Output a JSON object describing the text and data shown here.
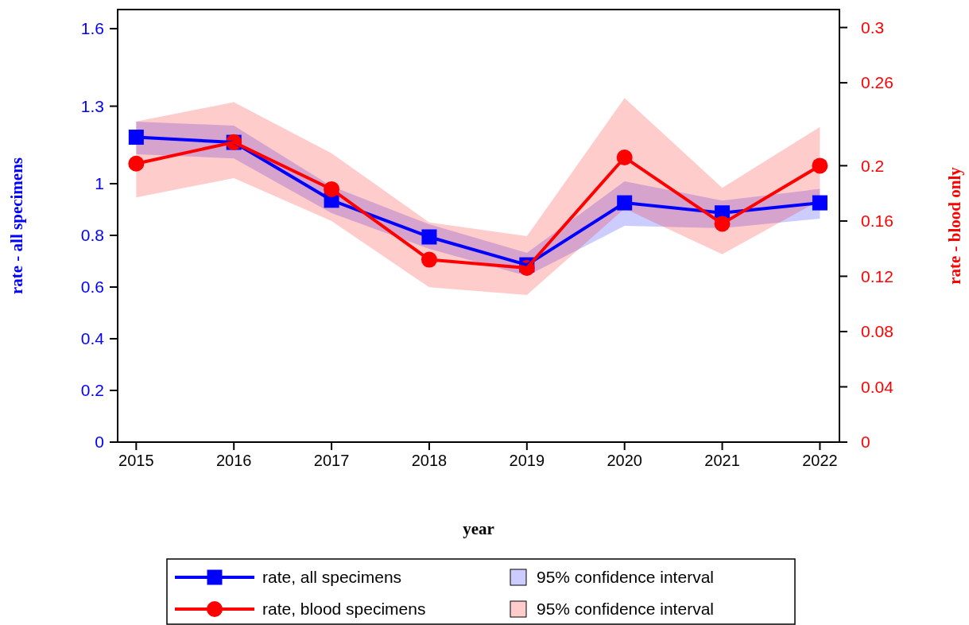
{
  "chart_data": {
    "type": "line",
    "xlabel": "year",
    "ylabel": "rate - all specimens",
    "y2label": "rate - blood only",
    "x": [
      2015,
      2016,
      2017,
      2018,
      2019,
      2020,
      2021,
      2022
    ],
    "xlim": [
      2014.81,
      2022.2
    ],
    "xticks": [
      2015,
      2016,
      2017,
      2018,
      2019,
      2020,
      2021,
      2022
    ],
    "ylim": [
      0,
      1.674
    ],
    "yticks": [
      0,
      0.2,
      0.4,
      0.6,
      0.8,
      1,
      1.3,
      1.6
    ],
    "y2lim": [
      0,
      0.313
    ],
    "y2ticks": [
      0,
      0.04,
      0.08,
      0.12,
      0.16,
      0.2,
      0.26,
      0.3
    ],
    "legend": "bottom",
    "grid": false,
    "series": [
      {
        "name": "rate, all specimens",
        "color": "#0000ff",
        "marker": "square",
        "values": [
          1.18,
          1.16,
          0.936,
          0.794,
          0.686,
          0.926,
          0.887,
          0.926
        ]
      },
      {
        "name": "95% confidence interval",
        "type": "area",
        "color": "#0000ff",
        "values": [
          null,
          null,
          null,
          null,
          null,
          null,
          null,
          null
        ],
        "lower": [
          1.114,
          1.098,
          0.886,
          0.748,
          0.643,
          0.837,
          0.828,
          0.865
        ],
        "upper": [
          1.24,
          1.225,
          0.99,
          0.843,
          0.732,
          1.009,
          0.935,
          0.98
        ]
      },
      {
        "name": "rate, blood specimens",
        "color": "#ff0000",
        "marker": "circle",
        "axis": "y2",
        "values": [
          0.2015,
          0.217,
          0.183,
          0.132,
          0.126,
          0.206,
          0.158,
          0.2
        ]
      },
      {
        "name": "95% confidence interval",
        "type": "area",
        "color": "#ff0000",
        "axis": "y2",
        "values": [
          null,
          null,
          null,
          null,
          null,
          null,
          null,
          null
        ],
        "lower": [
          0.177,
          0.191,
          0.16,
          0.112,
          0.1065,
          0.169,
          0.136,
          0.175
        ],
        "upper": [
          0.232,
          0.246,
          0.209,
          0.159,
          0.149,
          0.249,
          0.184,
          0.228
        ]
      }
    ]
  }
}
